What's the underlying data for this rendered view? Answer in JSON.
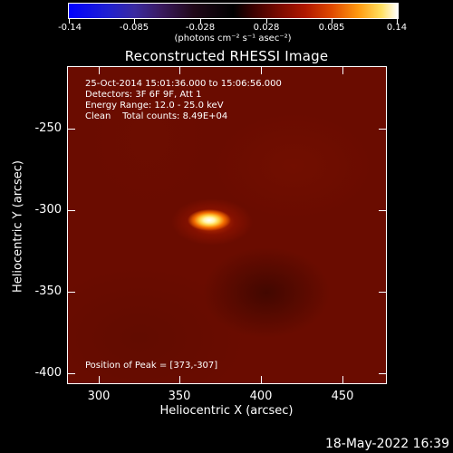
{
  "colorbar": {
    "tick_labels": [
      "-0.14",
      "-0.085",
      "-0.028",
      "0.028",
      "0.085",
      "0.14"
    ],
    "units": "(photons cm⁻² s⁻¹ asec⁻²)",
    "colors": {
      "min": "#0000ff",
      "zero": "#000000",
      "mid": "#b01800",
      "max": "#ffffff"
    }
  },
  "title": "Reconstructed RHESSI Image",
  "info": {
    "time_range": "25-Oct-2014 15:01:36.000 to 15:06:56.000",
    "detectors": "Detectors: 3F 6F 9F, Att 1",
    "energy_range": "Energy Range: 12.0 - 25.0 keV",
    "clean_counts": "Clean    Total counts: 8.49E+04",
    "peak_position": "Position of Peak = [373,-307]"
  },
  "axes": {
    "xlabel": "Heliocentric X (arcsec)",
    "ylabel": "Heliocentric Y (arcsec)",
    "xticks": [
      "300",
      "350",
      "400",
      "450"
    ],
    "yticks": [
      "-250",
      "-300",
      "-350",
      "-400"
    ]
  },
  "timestamp": "18-May-2022 16:39"
}
